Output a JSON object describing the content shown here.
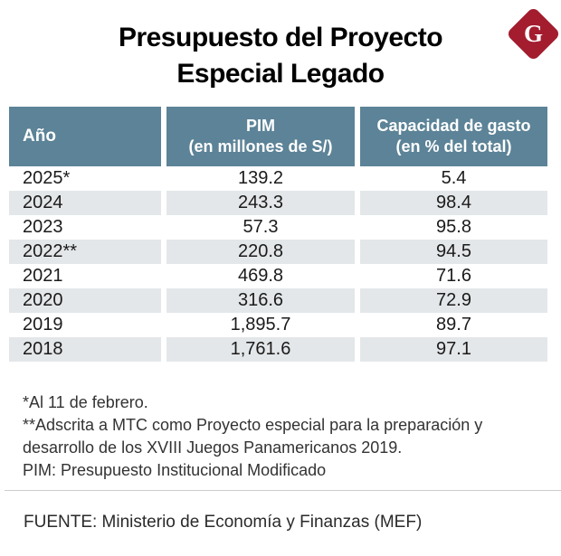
{
  "title": {
    "line1": "Presupuesto del Proyecto",
    "line2": "Especial Legado"
  },
  "logo": {
    "letter": "G",
    "color": "#a31d2f"
  },
  "table": {
    "headers": {
      "col1": "Año",
      "col2_line1": "PIM",
      "col2_line2": "(en millones de S/)",
      "col3_line1": "Capacidad de gasto",
      "col3_line2": "(en % del total)"
    },
    "rows": [
      {
        "year": "2025*",
        "pim": "139.2",
        "capacity": "5.4"
      },
      {
        "year": "2024",
        "pim": "243.3",
        "capacity": "98.4"
      },
      {
        "year": "2023",
        "pim": "57.3",
        "capacity": "95.8"
      },
      {
        "year": "2022**",
        "pim": "220.8",
        "capacity": "94.5"
      },
      {
        "year": "2021",
        "pim": "469.8",
        "capacity": "71.6"
      },
      {
        "year": "2020",
        "pim": "316.6",
        "capacity": "72.9"
      },
      {
        "year": "2019",
        "pim": "1,895.7",
        "capacity": "89.7"
      },
      {
        "year": "2018",
        "pim": "1,761.6",
        "capacity": "97.1"
      }
    ]
  },
  "footnotes": {
    "lines": [
      "*Al 11 de febrero.",
      "**Adscrita a MTC como Proyecto especial para la preparación y",
      "desarrollo de los XVIII Juegos Panamericanos 2019.",
      "PIM: Presupuesto Institucional Modificado"
    ]
  },
  "source": {
    "text": "FUENTE: Ministerio de Economía y Finanzas (MEF)"
  },
  "colors": {
    "header_bg": "#5c8397",
    "row_stripe": "#e4e7e9",
    "logo_red": "#a31d2f",
    "divider": "#cccccc",
    "title_text": "#000000",
    "body_text": "#1b1b1b"
  },
  "chart_data": {
    "type": "table",
    "title": "Presupuesto del Proyecto Especial Legado",
    "columns": [
      "Año",
      "PIM (en millones de S/)",
      "Capacidad de gasto (en % del total)"
    ],
    "rows": [
      [
        "2025*",
        139.2,
        5.4
      ],
      [
        "2024",
        243.3,
        98.4
      ],
      [
        "2023",
        57.3,
        95.8
      ],
      [
        "2022**",
        220.8,
        94.5
      ],
      [
        "2021",
        469.8,
        71.6
      ],
      [
        "2020",
        316.6,
        72.9
      ],
      [
        "2019",
        1895.7,
        89.7
      ],
      [
        "2018",
        1761.6,
        97.1
      ]
    ],
    "footnotes": [
      "*Al 11 de febrero.",
      "**Adscrita a MTC como Proyecto especial para la preparación y desarrollo de los XVIII Juegos Panamericanos 2019.",
      "PIM: Presupuesto Institucional Modificado"
    ],
    "source": "FUENTE: Ministerio de Economía y Finanzas (MEF)"
  }
}
